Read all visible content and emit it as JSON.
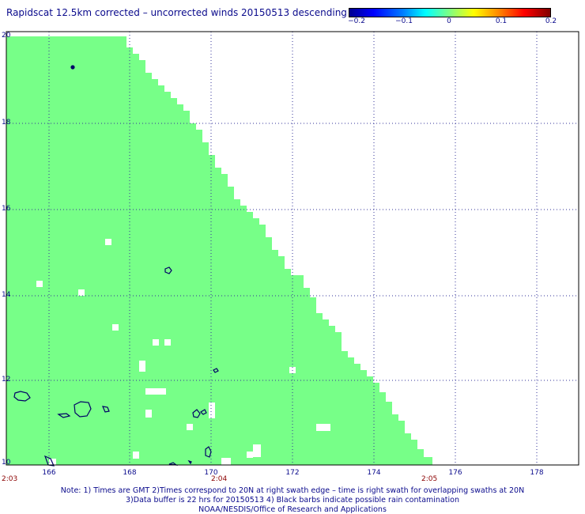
{
  "title": "Rapidscat 12.5km corrected – uncorrected winds 20150513 descending",
  "colorbar": {
    "ticks": [
      "−0.2",
      "−0.1",
      "0",
      "0.1",
      "0.2"
    ],
    "colors": [
      "#000090",
      "#0000ff",
      "#00ffff",
      "#80ff80",
      "#ffff00",
      "#ff8000",
      "#800000"
    ]
  },
  "map": {
    "lat_labels": [
      "20",
      "18",
      "16",
      "14",
      "12",
      "10"
    ],
    "lon_labels": [
      "166",
      "168",
      "170",
      "172",
      "174",
      "176",
      "178"
    ],
    "lat_range": [
      10,
      20
    ],
    "lon_range": [
      164.2,
      178.8
    ],
    "swath_color": "#77ff88",
    "coast_color": "#000066",
    "grid": "dotted"
  },
  "times": [
    "2:03",
    "2:04",
    "2:05"
  ],
  "notes": [
    "Note: 1) Times are GMT 2)Times correspond to 20N at right swath edge – time is right swath for overlapping swaths at 20N",
    "3)Data buffer is 22 hrs for 20150513 4) Black barbs indicate possible rain contamination",
    "NOAA/NESDIS/Office of Research and Applications"
  ]
}
